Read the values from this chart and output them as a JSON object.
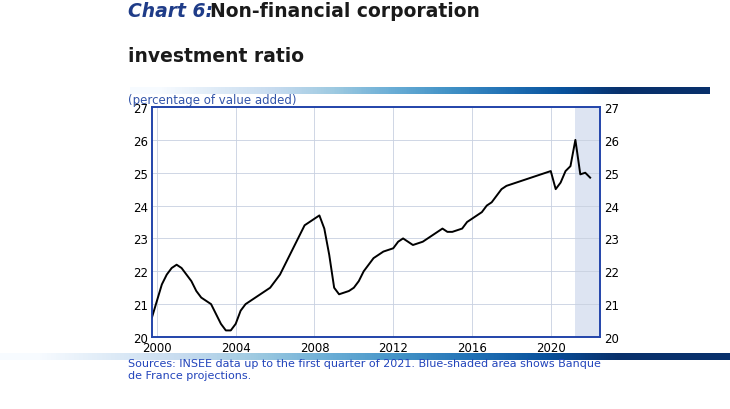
{
  "title_bold": "Chart 6:",
  "title_rest": " Non-financial corporation\ninvestment ratio",
  "subtitle": "(percentage of value added)",
  "source_text": "Sources: INSEE data up to the first quarter of 2021. Blue-shaded area shows Banque\nde France projections.",
  "ylim": [
    20,
    27
  ],
  "yticks": [
    20,
    21,
    22,
    23,
    24,
    25,
    26,
    27
  ],
  "xlim_start": 1999.75,
  "xlim_end": 2022.5,
  "xtick_years": [
    2000,
    2004,
    2008,
    2012,
    2016,
    2020
  ],
  "shade_start": 2021.25,
  "shade_end": 2022.5,
  "title_blue_color": "#1f3c88",
  "title_dark_color": "#1a1a1a",
  "subtitle_color": "#3355aa",
  "source_color": "#2244bb",
  "line_color": "#000000",
  "shade_color": "#dde4f2",
  "border_color": "#2244aa",
  "grid_color": "#c8d0e0",
  "data_x": [
    1999.75,
    2000.0,
    2000.25,
    2000.5,
    2000.75,
    2001.0,
    2001.25,
    2001.5,
    2001.75,
    2002.0,
    2002.25,
    2002.5,
    2002.75,
    2003.0,
    2003.25,
    2003.5,
    2003.75,
    2004.0,
    2004.25,
    2004.5,
    2004.75,
    2005.0,
    2005.25,
    2005.5,
    2005.75,
    2006.0,
    2006.25,
    2006.5,
    2006.75,
    2007.0,
    2007.25,
    2007.5,
    2007.75,
    2008.0,
    2008.25,
    2008.5,
    2008.75,
    2009.0,
    2009.25,
    2009.5,
    2009.75,
    2010.0,
    2010.25,
    2010.5,
    2010.75,
    2011.0,
    2011.25,
    2011.5,
    2011.75,
    2012.0,
    2012.25,
    2012.5,
    2012.75,
    2013.0,
    2013.25,
    2013.5,
    2013.75,
    2014.0,
    2014.25,
    2014.5,
    2014.75,
    2015.0,
    2015.25,
    2015.5,
    2015.75,
    2016.0,
    2016.25,
    2016.5,
    2016.75,
    2017.0,
    2017.25,
    2017.5,
    2017.75,
    2018.0,
    2018.25,
    2018.5,
    2018.75,
    2019.0,
    2019.25,
    2019.5,
    2019.75,
    2020.0,
    2020.25,
    2020.5,
    2020.75,
    2021.0,
    2021.25,
    2021.5,
    2021.75,
    2022.0
  ],
  "data_y": [
    20.6,
    21.1,
    21.6,
    21.9,
    22.1,
    22.2,
    22.1,
    21.9,
    21.7,
    21.4,
    21.2,
    21.1,
    21.0,
    20.7,
    20.4,
    20.2,
    20.2,
    20.4,
    20.8,
    21.0,
    21.1,
    21.2,
    21.3,
    21.4,
    21.5,
    21.7,
    21.9,
    22.2,
    22.5,
    22.8,
    23.1,
    23.4,
    23.5,
    23.6,
    23.7,
    23.3,
    22.5,
    21.5,
    21.3,
    21.35,
    21.4,
    21.5,
    21.7,
    22.0,
    22.2,
    22.4,
    22.5,
    22.6,
    22.65,
    22.7,
    22.9,
    23.0,
    22.9,
    22.8,
    22.85,
    22.9,
    23.0,
    23.1,
    23.2,
    23.3,
    23.2,
    23.2,
    23.25,
    23.3,
    23.5,
    23.6,
    23.7,
    23.8,
    24.0,
    24.1,
    24.3,
    24.5,
    24.6,
    24.65,
    24.7,
    24.75,
    24.8,
    24.85,
    24.9,
    24.95,
    25.0,
    25.05,
    24.5,
    24.7,
    25.05,
    25.2,
    26.0,
    24.95,
    25.0,
    24.85
  ]
}
